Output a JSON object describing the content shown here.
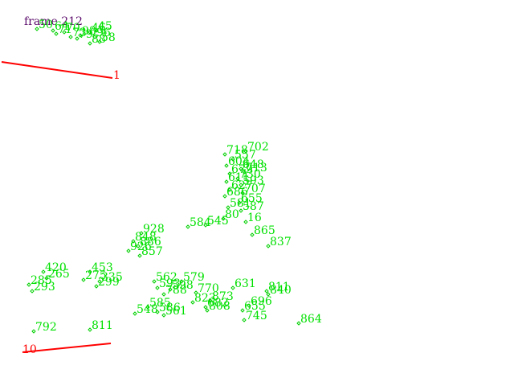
{
  "frame": {
    "label": "frame 212"
  },
  "colors": {
    "background": "#ffffff",
    "points": "#00e000",
    "tracks": "#ff0000",
    "frame_text": "#5a0a6a"
  },
  "tracks": [
    {
      "id": "1",
      "label": "1"
    },
    {
      "id": "10",
      "label": "10"
    }
  ],
  "points": [
    {
      "label": "50",
      "group": "top-left"
    },
    {
      "label": "64",
      "group": "top-left"
    },
    {
      "label": "70",
      "group": "top-left"
    },
    {
      "label": "73",
      "group": "top-left"
    },
    {
      "label": "98",
      "group": "top-left"
    },
    {
      "label": "45",
      "group": "top-left"
    },
    {
      "label": "46",
      "group": "top-left"
    },
    {
      "label": "58",
      "group": "top-left"
    },
    {
      "label": "79",
      "group": "top-left"
    },
    {
      "label": "96",
      "group": "top-left"
    },
    {
      "label": "71",
      "group": "top-left"
    },
    {
      "label": "88",
      "group": "top-left"
    },
    {
      "label": "718",
      "group": "upper-cluster"
    },
    {
      "label": "702",
      "group": "upper-cluster"
    },
    {
      "label": "557",
      "group": "upper-cluster"
    },
    {
      "label": "604",
      "group": "upper-cluster"
    },
    {
      "label": "648",
      "group": "upper-cluster"
    },
    {
      "label": "679",
      "group": "upper-cluster"
    },
    {
      "label": "713",
      "group": "upper-cluster"
    },
    {
      "label": "730",
      "group": "upper-cluster"
    },
    {
      "label": "611",
      "group": "upper-cluster"
    },
    {
      "label": "593",
      "group": "upper-cluster"
    },
    {
      "label": "627",
      "group": "upper-cluster"
    },
    {
      "label": "707",
      "group": "upper-cluster"
    },
    {
      "label": "686",
      "group": "upper-cluster"
    },
    {
      "label": "655",
      "group": "upper-cluster"
    },
    {
      "label": "581",
      "group": "upper-cluster"
    },
    {
      "label": "587",
      "group": "upper-cluster"
    },
    {
      "label": "80",
      "group": "upper-cluster"
    },
    {
      "label": "16",
      "group": "upper-cluster"
    },
    {
      "label": "584",
      "group": "upper-cluster"
    },
    {
      "label": "545",
      "group": "upper-cluster"
    },
    {
      "label": "865",
      "group": "upper-cluster"
    },
    {
      "label": "837",
      "group": "upper-cluster"
    },
    {
      "label": "928",
      "group": "mid-left"
    },
    {
      "label": "848",
      "group": "mid-left"
    },
    {
      "label": "886",
      "group": "mid-left"
    },
    {
      "label": "926",
      "group": "mid-left"
    },
    {
      "label": "857",
      "group": "mid-left"
    },
    {
      "label": "420",
      "group": "left"
    },
    {
      "label": "265",
      "group": "left"
    },
    {
      "label": "285",
      "group": "left"
    },
    {
      "label": "293",
      "group": "left"
    },
    {
      "label": "453",
      "group": "left"
    },
    {
      "label": "275",
      "group": "left"
    },
    {
      "label": "335",
      "group": "left"
    },
    {
      "label": "299",
      "group": "left"
    },
    {
      "label": "562",
      "group": "bottom-center"
    },
    {
      "label": "579",
      "group": "bottom-center"
    },
    {
      "label": "593",
      "group": "bottom-center"
    },
    {
      "label": "598",
      "group": "bottom-center"
    },
    {
      "label": "788",
      "group": "bottom-center"
    },
    {
      "label": "585",
      "group": "bottom-center"
    },
    {
      "label": "548",
      "group": "bottom-center"
    },
    {
      "label": "586",
      "group": "bottom-center"
    },
    {
      "label": "561",
      "group": "bottom-center"
    },
    {
      "label": "770",
      "group": "bottom-right"
    },
    {
      "label": "631",
      "group": "bottom-right"
    },
    {
      "label": "811",
      "group": "bottom-right"
    },
    {
      "label": "873",
      "group": "bottom-right"
    },
    {
      "label": "840",
      "group": "bottom-right"
    },
    {
      "label": "823",
      "group": "bottom-right"
    },
    {
      "label": "808",
      "group": "bottom-right"
    },
    {
      "label": "696",
      "group": "bottom-right"
    },
    {
      "label": "655",
      "group": "bottom-right"
    },
    {
      "label": "682",
      "group": "bottom-right"
    },
    {
      "label": "745",
      "group": "bottom-right"
    },
    {
      "label": "864",
      "group": "bottom-right"
    },
    {
      "label": "792",
      "group": "bottom-left"
    },
    {
      "label": "811",
      "group": "bottom-left"
    }
  ]
}
